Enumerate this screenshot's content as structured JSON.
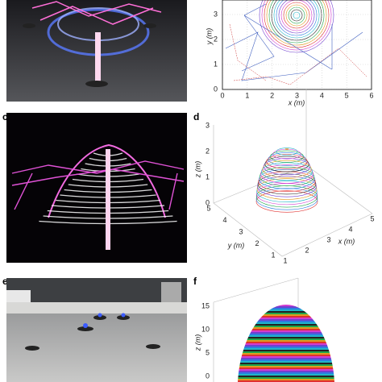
{
  "plot_b": {
    "x_label": "x (m)",
    "y_label": "y (m)",
    "x_ticks": [
      "0",
      "1",
      "2",
      "3",
      "4",
      "5",
      "6"
    ],
    "y_ticks": [
      "0",
      "1",
      "2",
      "3"
    ]
  },
  "panel_c": {
    "letter": "c"
  },
  "panel_d": {
    "letter": "d",
    "z_label": "z (m)",
    "z_ticks": [
      "0",
      "1",
      "2",
      "3"
    ],
    "y_label": "y (m)",
    "y_ticks": [
      "5",
      "4",
      "3",
      "2",
      "1"
    ],
    "x_label": "x (m)",
    "x_ticks": [
      "1",
      "2",
      "3",
      "4",
      "5"
    ]
  },
  "panel_e": {
    "letter": "e"
  },
  "panel_f": {
    "letter": "f",
    "z_label": "z (m)",
    "z_ticks": [
      "0",
      "5",
      "10",
      "15"
    ]
  }
}
